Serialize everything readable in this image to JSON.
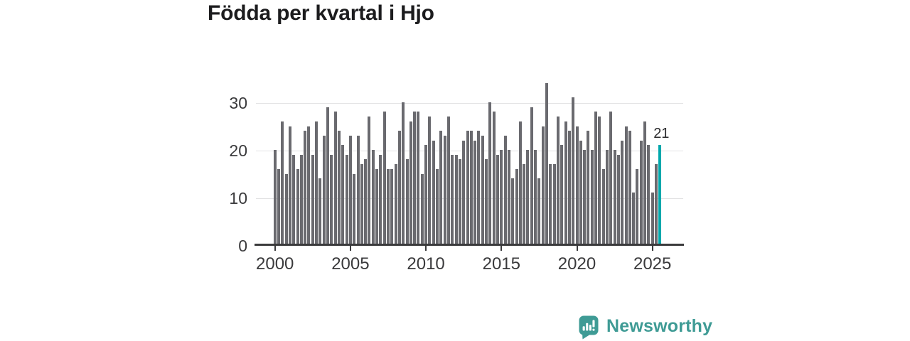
{
  "title": "Födda per kvartal i Hjo",
  "chart_data": {
    "type": "bar",
    "title": "Födda per kvartal i Hjo",
    "x_unit": "quarter",
    "years": [
      {
        "year": 2000,
        "values": [
          20,
          16,
          26,
          15
        ]
      },
      {
        "year": 2001,
        "values": [
          25,
          19,
          16,
          19
        ]
      },
      {
        "year": 2002,
        "values": [
          24,
          25,
          19,
          26
        ]
      },
      {
        "year": 2003,
        "values": [
          14,
          23,
          29,
          19
        ]
      },
      {
        "year": 2004,
        "values": [
          28,
          24,
          21,
          19
        ]
      },
      {
        "year": 2005,
        "values": [
          23,
          15,
          23,
          17
        ]
      },
      {
        "year": 2006,
        "values": [
          18,
          27,
          20,
          16
        ]
      },
      {
        "year": 2007,
        "values": [
          19,
          28,
          16,
          16
        ]
      },
      {
        "year": 2008,
        "values": [
          17,
          24,
          30,
          18
        ]
      },
      {
        "year": 2009,
        "values": [
          26,
          28,
          28,
          15
        ]
      },
      {
        "year": 2010,
        "values": [
          21,
          27,
          22,
          16
        ]
      },
      {
        "year": 2011,
        "values": [
          24,
          23,
          27,
          19
        ]
      },
      {
        "year": 2012,
        "values": [
          19,
          18,
          22,
          24
        ]
      },
      {
        "year": 2013,
        "values": [
          24,
          22,
          24,
          23
        ]
      },
      {
        "year": 2014,
        "values": [
          18,
          30,
          28,
          19
        ]
      },
      {
        "year": 2015,
        "values": [
          20,
          23,
          20,
          14
        ]
      },
      {
        "year": 2016,
        "values": [
          16,
          26,
          17,
          20
        ]
      },
      {
        "year": 2017,
        "values": [
          29,
          20,
          14,
          25
        ]
      },
      {
        "year": 2018,
        "values": [
          34,
          17,
          17,
          27
        ]
      },
      {
        "year": 2019,
        "values": [
          21,
          26,
          24,
          31
        ]
      },
      {
        "year": 2020,
        "values": [
          25,
          22,
          20,
          24
        ]
      },
      {
        "year": 2021,
        "values": [
          20,
          28,
          27,
          16
        ]
      },
      {
        "year": 2022,
        "values": [
          20,
          28,
          20,
          19
        ]
      },
      {
        "year": 2023,
        "values": [
          22,
          25,
          24,
          11
        ]
      },
      {
        "year": 2024,
        "values": [
          16,
          22,
          26,
          21
        ]
      },
      {
        "year": 2025,
        "values": [
          11,
          17,
          21
        ]
      }
    ],
    "x_tick_labels": [
      "2000",
      "2005",
      "2010",
      "2015",
      "2020",
      "2025"
    ],
    "y_tick_values": [
      0,
      10,
      20,
      30
    ],
    "ylim": [
      0,
      35
    ],
    "grid": "horizontal",
    "legend": "none",
    "last_value_label": "21",
    "bar_color": "#6a6a6f",
    "highlight_color": "#00a8ac",
    "highlight": "last-bar"
  },
  "branding": {
    "logo_text": "Newsworthy",
    "logo_color": "#3f9b95",
    "logo_icon": "bar-chart-speech-bubble-icon"
  }
}
